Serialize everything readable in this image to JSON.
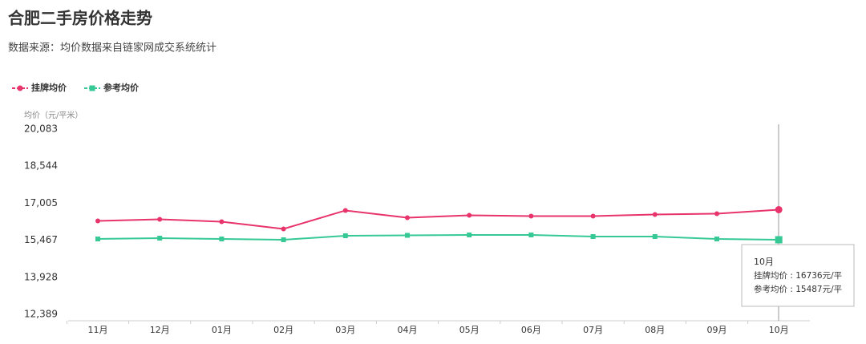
{
  "chart_data": {
    "type": "line",
    "title": "合肥二手房价格走势",
    "subtitle": "数据来源：均价数据来自链家网成交系统统计",
    "y_label": "均价（元/平米）",
    "categories": [
      "11月",
      "12月",
      "01月",
      "02月",
      "03月",
      "04月",
      "05月",
      "06月",
      "07月",
      "08月",
      "09月",
      "10月"
    ],
    "series": [
      {
        "name": "挂牌均价",
        "color": "#e8336b",
        "marker": "circle",
        "values": [
          16270,
          16336,
          16236,
          15937,
          16703,
          16403,
          16503,
          16470,
          16470,
          16536,
          16570,
          16736
        ]
      },
      {
        "name": "参考均价",
        "color": "#36c995",
        "marker": "square",
        "values": [
          15520,
          15553,
          15520,
          15487,
          15653,
          15670,
          15686,
          15686,
          15620,
          15620,
          15520,
          15487
        ]
      }
    ],
    "ylim": [
      12389,
      20083
    ],
    "yticks": [
      {
        "value": 12389,
        "label": "12,389"
      },
      {
        "value": 13928,
        "label": "13,928"
      },
      {
        "value": 15467,
        "label": "15,467"
      },
      {
        "value": 17005,
        "label": "17,005"
      },
      {
        "value": 18544,
        "label": "18,544"
      },
      {
        "value": 20083,
        "label": "20,083"
      }
    ],
    "grid": false,
    "legend": "top-left",
    "tooltip": {
      "title": "10月",
      "rows": [
        "挂牌均价 : 16736元/平",
        "参考均价 : 15487元/平"
      ]
    }
  }
}
